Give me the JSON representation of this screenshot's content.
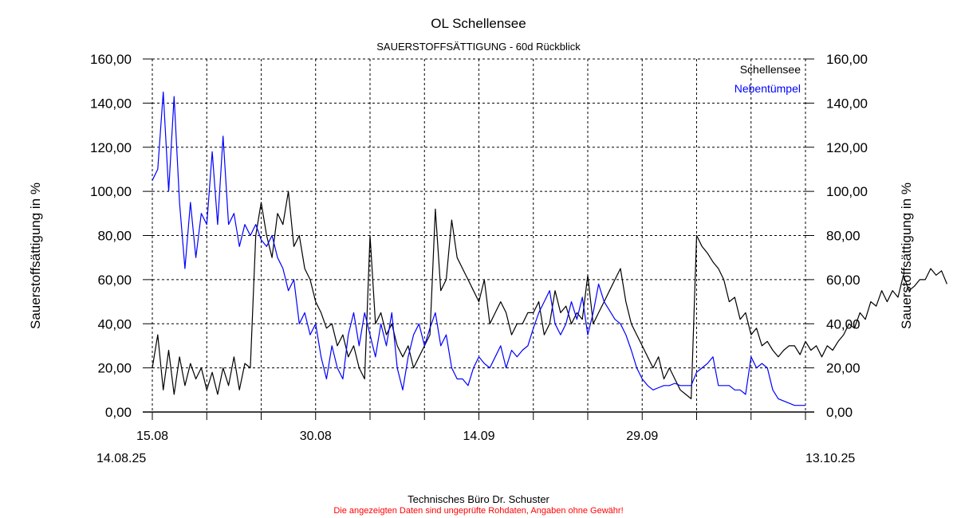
{
  "title": "OL Schellensee",
  "subtitle": "SAUERSTOFFSÄTTIGUNG - 60d Rückblick",
  "footer": {
    "company": "Technisches Büro Dr. Schuster",
    "disclaimer": "Die angezeigten Daten sind ungeprüfte Rohdaten, Angaben ohne Gewähr!"
  },
  "chart_data": {
    "type": "line",
    "title": "OL Schellensee",
    "subtitle": "SAUERSTOFFSÄTTIGUNG - 60d Rückblick",
    "ylabel": "Sauerstoffsättigung in %",
    "ylabel_right": "Sauerstoffsättigung in %",
    "ylim": [
      0,
      160
    ],
    "yticks": [
      "0,00",
      "20,00",
      "40,00",
      "60,00",
      "80,00",
      "100,00",
      "120,00",
      "140,00",
      "160,00"
    ],
    "xlim_days_from_15_08": [
      0,
      60
    ],
    "xticks": [
      {
        "day": 0,
        "label": "15.08"
      },
      {
        "day": 15,
        "label": "30.08"
      },
      {
        "day": 30,
        "label": "14.09"
      },
      {
        "day": 45,
        "label": "29.09"
      }
    ],
    "x_start_label": "14.08.25",
    "x_end_label": "13.10.25",
    "grid": true,
    "legend_position": "top-right",
    "x_step_days": 0.5,
    "series": [
      {
        "name": "Schellensee",
        "color": "#000000",
        "values": [
          20,
          35,
          10,
          28,
          8,
          25,
          12,
          22,
          15,
          20,
          10,
          18,
          8,
          20,
          12,
          25,
          10,
          22,
          20,
          80,
          95,
          80,
          70,
          90,
          85,
          100,
          75,
          80,
          65,
          60,
          50,
          45,
          38,
          40,
          30,
          35,
          25,
          30,
          20,
          15,
          80,
          40,
          45,
          35,
          40,
          30,
          25,
          30,
          20,
          25,
          30,
          35,
          92,
          55,
          60,
          87,
          70,
          65,
          60,
          55,
          50,
          60,
          40,
          45,
          50,
          45,
          35,
          40,
          40,
          45,
          45,
          50,
          35,
          40,
          55,
          45,
          48,
          40,
          45,
          42,
          62,
          40,
          45,
          50,
          55,
          60,
          65,
          50,
          40,
          35,
          30,
          25,
          20,
          25,
          15,
          20,
          15,
          10,
          8,
          6,
          80,
          75,
          72,
          68,
          65,
          60,
          50,
          52,
          42,
          45,
          35,
          38,
          30,
          32,
          28,
          25,
          28,
          30,
          30,
          26,
          32,
          28,
          30,
          25,
          30,
          28,
          32,
          35,
          40,
          38,
          45,
          42,
          50,
          48,
          55,
          50,
          55,
          52,
          62,
          55,
          57,
          60,
          60,
          65,
          62,
          64,
          58
        ]
      },
      {
        "name": "Nebentümpel",
        "color": "#0000ff",
        "values": [
          105,
          110,
          145,
          100,
          143,
          95,
          65,
          95,
          70,
          90,
          85,
          118,
          85,
          125,
          85,
          90,
          75,
          85,
          80,
          85,
          78,
          75,
          80,
          70,
          65,
          55,
          60,
          40,
          45,
          35,
          40,
          25,
          15,
          30,
          20,
          15,
          35,
          45,
          30,
          45,
          35,
          25,
          40,
          30,
          45,
          20,
          10,
          25,
          35,
          40,
          30,
          38,
          45,
          30,
          35,
          20,
          15,
          15,
          12,
          20,
          25,
          22,
          20,
          25,
          30,
          20,
          28,
          25,
          28,
          30,
          38,
          45,
          50,
          55,
          40,
          35,
          40,
          50,
          42,
          52,
          35,
          45,
          58,
          50,
          46,
          42,
          40,
          35,
          28,
          20,
          15,
          12,
          10,
          11,
          12,
          12,
          13,
          12,
          12,
          12,
          18,
          20,
          22,
          25,
          12,
          12,
          12,
          10,
          10,
          8,
          25,
          20,
          22,
          20,
          10,
          6,
          5,
          4,
          3,
          3,
          3
        ]
      }
    ]
  }
}
